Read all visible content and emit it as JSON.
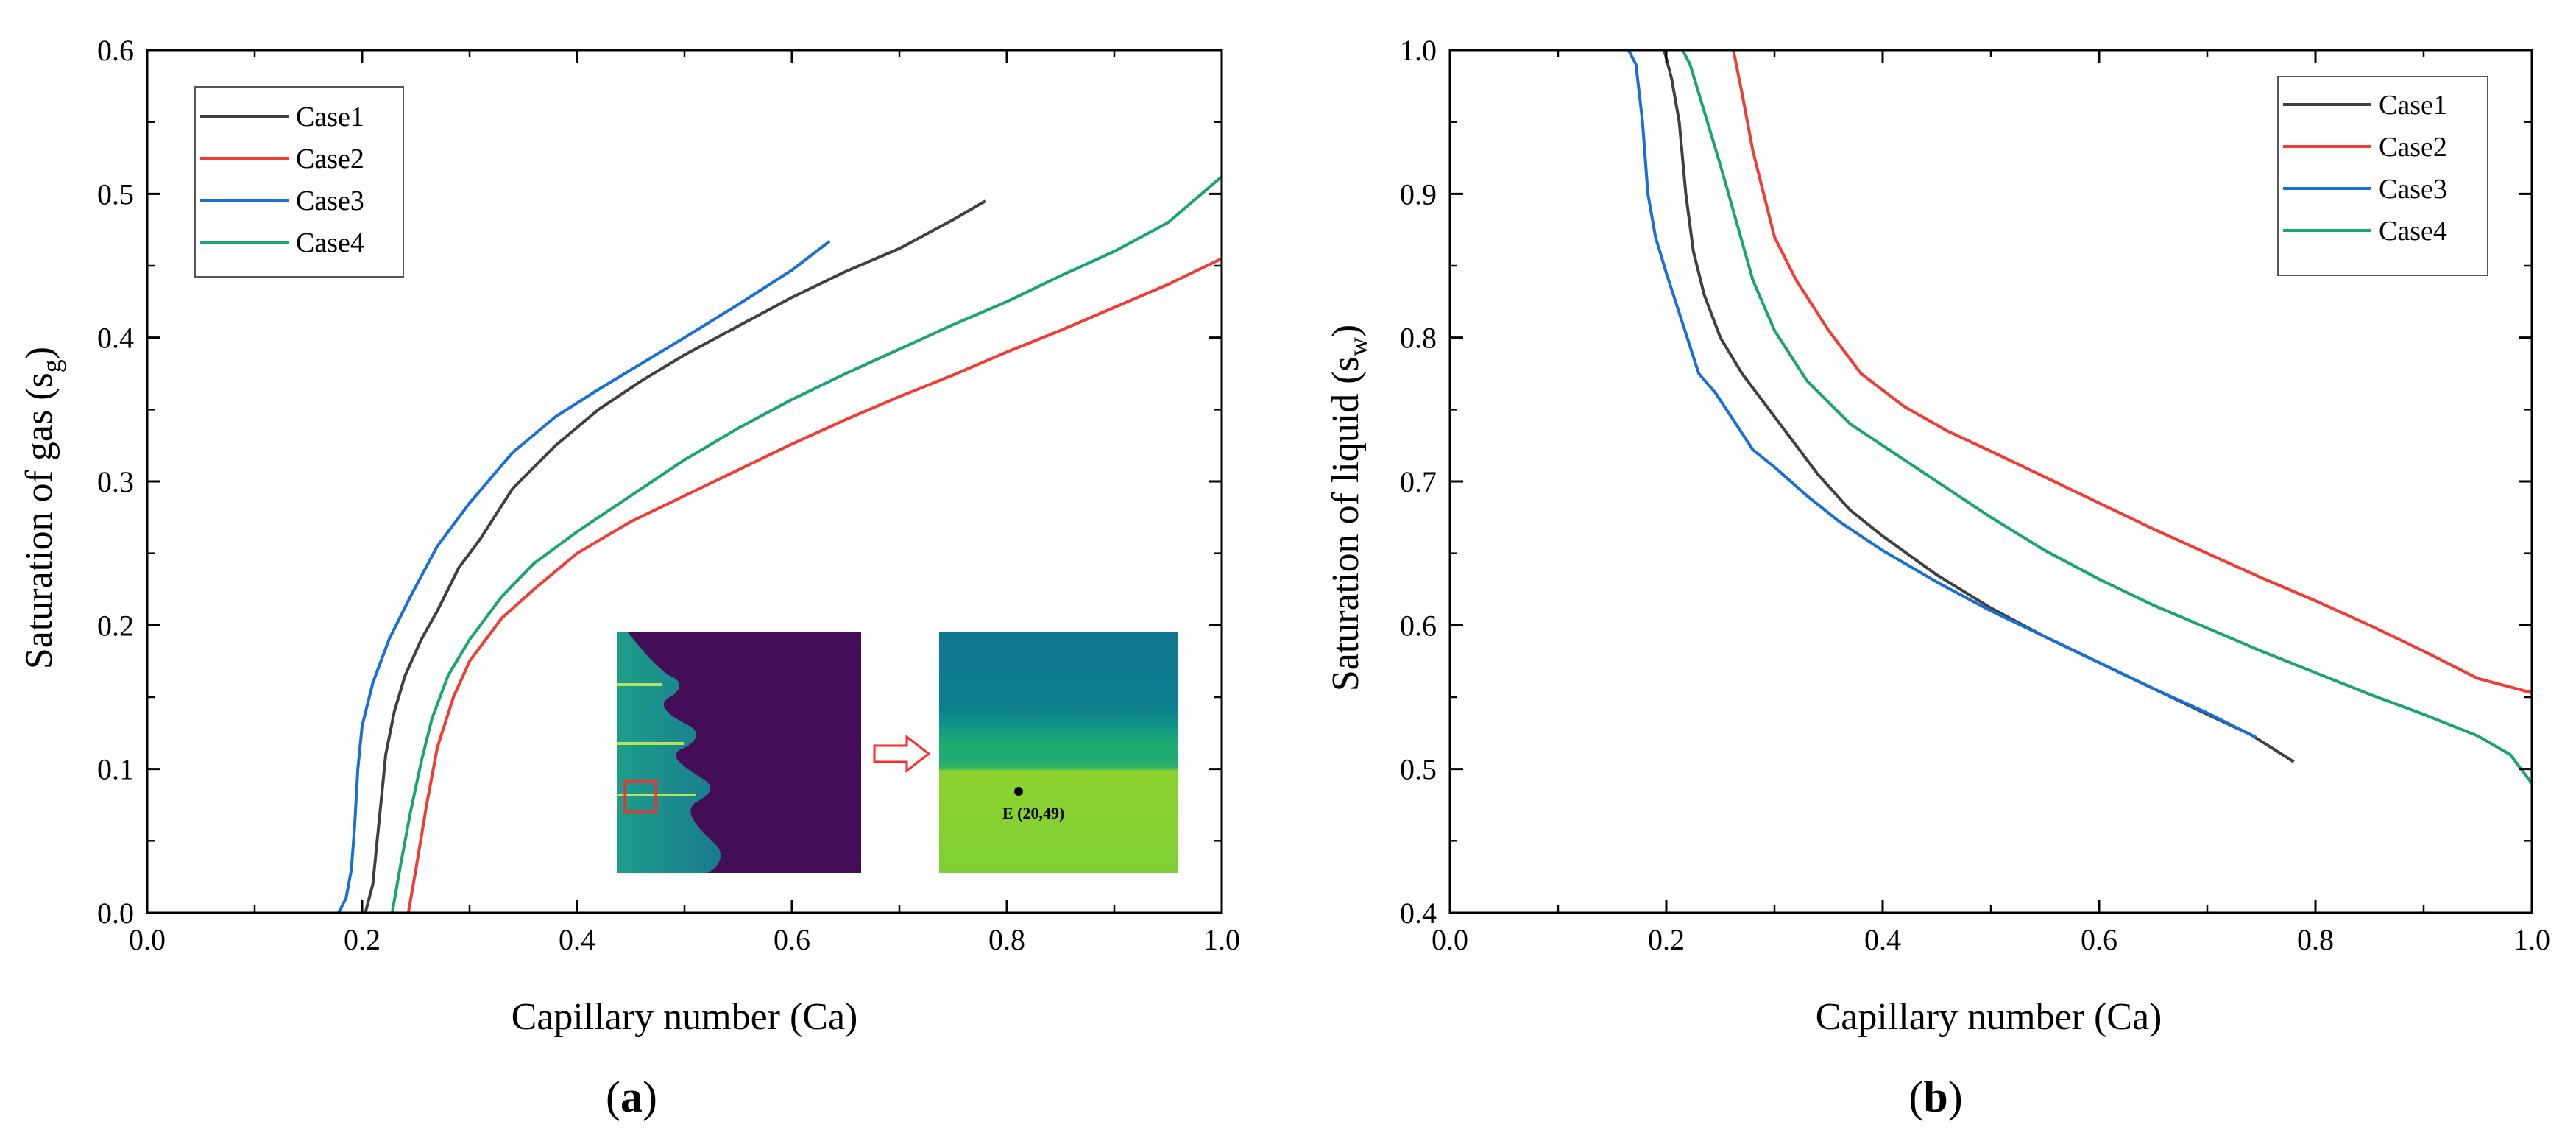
{
  "chart_data": [
    {
      "type": "line",
      "panel_label": "a",
      "xlabel": "Capillary number (Ca)",
      "ylabel": "Saturation of gas",
      "ylabel_symbol": "s",
      "ylabel_subscript": "g",
      "xlim": [
        0,
        1.0
      ],
      "ylim": [
        0,
        0.6
      ],
      "xticks": [
        "0.0",
        "0.2",
        "0.4",
        "0.6",
        "0.8",
        "1.0"
      ],
      "yticks": [
        "0.0",
        "0.1",
        "0.2",
        "0.3",
        "0.4",
        "0.5",
        "0.6"
      ],
      "legend": "top-left",
      "grid": false,
      "inset_annotation": "E (20,49)",
      "series": [
        {
          "name": "Case1",
          "color": "#404040",
          "x": [
            0.203,
            0.21,
            0.214,
            0.218,
            0.222,
            0.23,
            0.24,
            0.255,
            0.27,
            0.29,
            0.31,
            0.34,
            0.38,
            0.42,
            0.46,
            0.5,
            0.55,
            0.6,
            0.65,
            0.7,
            0.75,
            0.78
          ],
          "y": [
            0.0,
            0.02,
            0.05,
            0.08,
            0.11,
            0.14,
            0.165,
            0.19,
            0.21,
            0.24,
            0.26,
            0.295,
            0.325,
            0.35,
            0.37,
            0.388,
            0.408,
            0.428,
            0.446,
            0.462,
            0.482,
            0.495
          ]
        },
        {
          "name": "Case2",
          "color": "#f03c32",
          "x": [
            0.243,
            0.25,
            0.26,
            0.27,
            0.285,
            0.3,
            0.33,
            0.36,
            0.4,
            0.45,
            0.5,
            0.55,
            0.6,
            0.65,
            0.7,
            0.75,
            0.8,
            0.85,
            0.9,
            0.95,
            1.0
          ],
          "y": [
            0.0,
            0.03,
            0.075,
            0.115,
            0.15,
            0.175,
            0.205,
            0.225,
            0.25,
            0.272,
            0.29,
            0.308,
            0.326,
            0.343,
            0.359,
            0.374,
            0.39,
            0.405,
            0.421,
            0.437,
            0.455
          ]
        },
        {
          "name": "Case3",
          "color": "#1a6fd6",
          "x": [
            0.178,
            0.185,
            0.19,
            0.193,
            0.196,
            0.2,
            0.21,
            0.225,
            0.245,
            0.27,
            0.3,
            0.34,
            0.38,
            0.42,
            0.46,
            0.5,
            0.55,
            0.6,
            0.635
          ],
          "y": [
            0.0,
            0.01,
            0.03,
            0.06,
            0.1,
            0.13,
            0.16,
            0.19,
            0.22,
            0.255,
            0.285,
            0.32,
            0.345,
            0.364,
            0.382,
            0.4,
            0.423,
            0.447,
            0.467
          ]
        },
        {
          "name": "Case4",
          "color": "#1aa56e",
          "x": [
            0.228,
            0.235,
            0.245,
            0.255,
            0.265,
            0.28,
            0.3,
            0.33,
            0.36,
            0.4,
            0.45,
            0.5,
            0.55,
            0.6,
            0.65,
            0.7,
            0.75,
            0.8,
            0.85,
            0.9,
            0.95,
            1.0
          ],
          "y": [
            0.0,
            0.03,
            0.07,
            0.105,
            0.135,
            0.165,
            0.19,
            0.22,
            0.243,
            0.265,
            0.29,
            0.315,
            0.337,
            0.357,
            0.375,
            0.392,
            0.409,
            0.425,
            0.443,
            0.46,
            0.48,
            0.512
          ]
        }
      ]
    },
    {
      "type": "line",
      "panel_label": "b",
      "xlabel": "Capillary number (Ca)",
      "ylabel": "Saturation of liquid",
      "ylabel_symbol": "s",
      "ylabel_subscript": "w",
      "xlim": [
        0,
        1.0
      ],
      "ylim": [
        0.4,
        1.0
      ],
      "xticks": [
        "0.0",
        "0.2",
        "0.4",
        "0.6",
        "0.8",
        "1.0"
      ],
      "yticks": [
        "0.4",
        "0.5",
        "0.6",
        "0.7",
        "0.8",
        "0.9",
        "1.0"
      ],
      "legend": "top-right",
      "grid": false,
      "series": [
        {
          "name": "Case1",
          "color": "#404040",
          "x": [
            0.198,
            0.205,
            0.212,
            0.218,
            0.225,
            0.235,
            0.25,
            0.27,
            0.29,
            0.31,
            0.34,
            0.37,
            0.4,
            0.45,
            0.5,
            0.55,
            0.6,
            0.65,
            0.7,
            0.74,
            0.78
          ],
          "y": [
            1.0,
            0.98,
            0.95,
            0.9,
            0.86,
            0.83,
            0.8,
            0.775,
            0.755,
            0.735,
            0.705,
            0.68,
            0.662,
            0.635,
            0.612,
            0.592,
            0.574,
            0.556,
            0.538,
            0.524,
            0.505
          ]
        },
        {
          "name": "Case2",
          "color": "#f03c32",
          "x": [
            0.262,
            0.27,
            0.28,
            0.29,
            0.3,
            0.32,
            0.35,
            0.38,
            0.42,
            0.46,
            0.5,
            0.55,
            0.6,
            0.65,
            0.7,
            0.75,
            0.8,
            0.85,
            0.9,
            0.95,
            1.0
          ],
          "y": [
            1.0,
            0.97,
            0.93,
            0.9,
            0.87,
            0.84,
            0.805,
            0.775,
            0.752,
            0.735,
            0.721,
            0.703,
            0.685,
            0.667,
            0.65,
            0.633,
            0.617,
            0.6,
            0.582,
            0.563,
            0.553
          ]
        },
        {
          "name": "Case3",
          "color": "#1a6fd6",
          "x": [
            0.165,
            0.172,
            0.178,
            0.183,
            0.19,
            0.2,
            0.215,
            0.23,
            0.245,
            0.26,
            0.28,
            0.3,
            0.33,
            0.36,
            0.4,
            0.45,
            0.5,
            0.55,
            0.6,
            0.65,
            0.7,
            0.745
          ],
          "y": [
            1.0,
            0.99,
            0.95,
            0.9,
            0.87,
            0.845,
            0.81,
            0.775,
            0.762,
            0.745,
            0.722,
            0.71,
            0.69,
            0.672,
            0.652,
            0.63,
            0.61,
            0.592,
            0.574,
            0.556,
            0.539,
            0.522
          ]
        },
        {
          "name": "Case4",
          "color": "#1aa56e",
          "x": [
            0.215,
            0.222,
            0.23,
            0.24,
            0.25,
            0.265,
            0.28,
            0.3,
            0.33,
            0.37,
            0.4,
            0.45,
            0.5,
            0.55,
            0.6,
            0.65,
            0.7,
            0.75,
            0.8,
            0.85,
            0.9,
            0.95,
            0.98,
            1.0
          ],
          "y": [
            1.0,
            0.99,
            0.97,
            0.945,
            0.92,
            0.88,
            0.84,
            0.805,
            0.77,
            0.74,
            0.725,
            0.7,
            0.675,
            0.652,
            0.632,
            0.614,
            0.598,
            0.582,
            0.567,
            0.552,
            0.538,
            0.523,
            0.51,
            0.49
          ]
        }
      ]
    }
  ]
}
